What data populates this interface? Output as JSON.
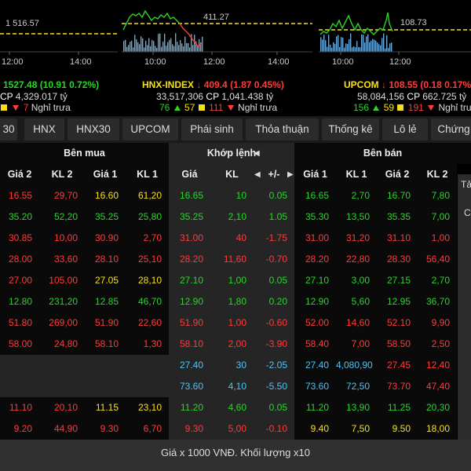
{
  "indices": [
    {
      "id": "vnindex",
      "name": "",
      "arrow": "",
      "ref_label": "1 516.57",
      "times": [
        "12:00",
        "14:00"
      ],
      "value": "1527.48",
      "change": "(10.91",
      "percent": "0.72%)",
      "volume": "",
      "value_traded": "4,329.017",
      "unit": "tỷ",
      "up": "",
      "ref": "",
      "down": "7",
      "session": "Nghỉ trưa"
    },
    {
      "id": "hnx",
      "name": "HNX-INDEX",
      "arrow": "↓",
      "ref_label": "411.27",
      "times": [
        "10:00",
        "12:00",
        "14:00"
      ],
      "value": "409.4",
      "change": "(1.87",
      "percent": "0.45%)",
      "volume": "33,517,306",
      "value_traded": "1,041.438",
      "unit": "tỷ",
      "up": "76",
      "ref": "57",
      "down": "111",
      "session": "Nghỉ trưa"
    },
    {
      "id": "upcom",
      "name": "UPCOM",
      "arrow": "↓",
      "ref_label": "108.73",
      "times": [
        "10:00",
        "12:00"
      ],
      "value": "108.55",
      "change": "(0.18",
      "percent": "0.17%",
      "volume": "58,084,156",
      "value_traded": "662.725",
      "unit": "tỷ",
      "up": "156",
      "ref": "59",
      "down": "191",
      "session": "Nghỉ trưa"
    }
  ],
  "cp_label": "CP",
  "tabs": [
    "30",
    "HNX",
    "HNX30",
    "UPCOM",
    "Phái sinh",
    "Thỏa thuận",
    "Thống kê",
    "Lô lẻ",
    "Chứng"
  ],
  "headers": {
    "group_buy": "Bên mua",
    "group_match": "Khớp lệnh",
    "group_sell": "Bên bán",
    "cols": [
      "Giá 2",
      "KL 2",
      "Giá 1",
      "KL 1",
      "Giá",
      "KL",
      "+/-",
      "Giá 1",
      "KL 1",
      "Giá 2",
      "KL 2"
    ]
  },
  "side_letters": [
    "Tả",
    "C",
    "",
    "",
    "",
    ""
  ],
  "colors": {
    "green": "#2bd42b",
    "red": "#ff3b3b",
    "yellow": "#f7e018",
    "white": "#ffffff"
  },
  "rows": [
    {
      "cells": [
        "16.55",
        "29,70",
        "16.60",
        "61,20",
        "16.65",
        "10",
        "0.05",
        "16.65",
        "2,70",
        "16.70",
        "7,80"
      ],
      "tone": [
        "r",
        "r",
        "y",
        "y",
        "g",
        "g",
        "g",
        "g",
        "g",
        "g",
        "g"
      ],
      "blank": false
    },
    {
      "cells": [
        "35.20",
        "52,20",
        "35.25",
        "25,80",
        "35.25",
        "2,10",
        "1.05",
        "35.30",
        "13,50",
        "35.35",
        "7,00"
      ],
      "tone": [
        "g",
        "g",
        "g",
        "g",
        "g",
        "g",
        "g",
        "g",
        "g",
        "g",
        "g"
      ],
      "blank": false
    },
    {
      "cells": [
        "30.85",
        "10,00",
        "30.90",
        "2,70",
        "31.00",
        "40",
        "-1.75",
        "31.00",
        "31,20",
        "31.10",
        "1,00"
      ],
      "tone": [
        "r",
        "r",
        "r",
        "r",
        "r",
        "r",
        "r",
        "r",
        "r",
        "r",
        "r"
      ],
      "blank": false
    },
    {
      "cells": [
        "28.00",
        "33,60",
        "28.10",
        "25,10",
        "28.20",
        "11,60",
        "-0.70",
        "28.20",
        "22,80",
        "28.30",
        "56,40"
      ],
      "tone": [
        "r",
        "r",
        "r",
        "r",
        "r",
        "r",
        "r",
        "r",
        "r",
        "r",
        "r"
      ],
      "blank": false
    },
    {
      "cells": [
        "27.00",
        "105,00",
        "27.05",
        "28,10",
        "27.10",
        "1,00",
        "0.05",
        "27.10",
        "3,00",
        "27.15",
        "2,70"
      ],
      "tone": [
        "r",
        "r",
        "y",
        "y",
        "g",
        "g",
        "g",
        "g",
        "g",
        "g",
        "g"
      ],
      "blank": false
    },
    {
      "cells": [
        "12.80",
        "231,20",
        "12.85",
        "46,70",
        "12.90",
        "1,80",
        "0.20",
        "12.90",
        "5,60",
        "12.95",
        "36,70"
      ],
      "tone": [
        "g",
        "g",
        "g",
        "g",
        "g",
        "g",
        "g",
        "g",
        "g",
        "g",
        "g"
      ],
      "blank": false
    },
    {
      "cells": [
        "51.80",
        "269,00",
        "51.90",
        "22,60",
        "51.90",
        "1,00",
        "-0.60",
        "52.00",
        "14,60",
        "52.10",
        "9,90"
      ],
      "tone": [
        "r",
        "r",
        "r",
        "r",
        "r",
        "r",
        "r",
        "r",
        "r",
        "r",
        "r"
      ],
      "blank": false
    },
    {
      "cells": [
        "58.00",
        "24,80",
        "58.10",
        "1,30",
        "58.10",
        "2,00",
        "-3.90",
        "58.40",
        "7,00",
        "58.50",
        "2,50"
      ],
      "tone": [
        "r",
        "r",
        "r",
        "r",
        "r",
        "r",
        "r",
        "r",
        "r",
        "r",
        "r"
      ],
      "blank": false
    },
    {
      "cells": [
        "",
        "",
        "",
        "",
        "27.40",
        "30",
        "-2.05",
        "27.40",
        "4,080,90",
        "27.45",
        "12,40"
      ],
      "tone": [
        "w",
        "w",
        "w",
        "w",
        "c",
        "c",
        "c",
        "c",
        "c",
        "r",
        "r"
      ],
      "blank": true
    },
    {
      "cells": [
        "",
        "",
        "",
        "",
        "73.60",
        "4,10",
        "-5.50",
        "73.60",
        "72,50",
        "73.70",
        "47,40"
      ],
      "tone": [
        "w",
        "w",
        "w",
        "w",
        "c",
        "c",
        "c",
        "c",
        "c",
        "r",
        "r"
      ],
      "blank": true
    },
    {
      "cells": [
        "11.10",
        "20,10",
        "11.15",
        "23,10",
        "11.20",
        "4,60",
        "0.05",
        "11.20",
        "13,90",
        "11.25",
        "20,30"
      ],
      "tone": [
        "r",
        "r",
        "y",
        "y",
        "g",
        "g",
        "g",
        "g",
        "g",
        "g",
        "g"
      ],
      "blank": false
    },
    {
      "cells": [
        "9.20",
        "44,90",
        "9.30",
        "6,70",
        "9.30",
        "5,00",
        "-0.10",
        "9.40",
        "7,50",
        "9.50",
        "18,00"
      ],
      "tone": [
        "r",
        "r",
        "r",
        "r",
        "r",
        "r",
        "r",
        "y",
        "y",
        "y",
        "y"
      ],
      "blank": false
    }
  ],
  "footer": "Giá x 1000 VNĐ. Khối lượng x10"
}
